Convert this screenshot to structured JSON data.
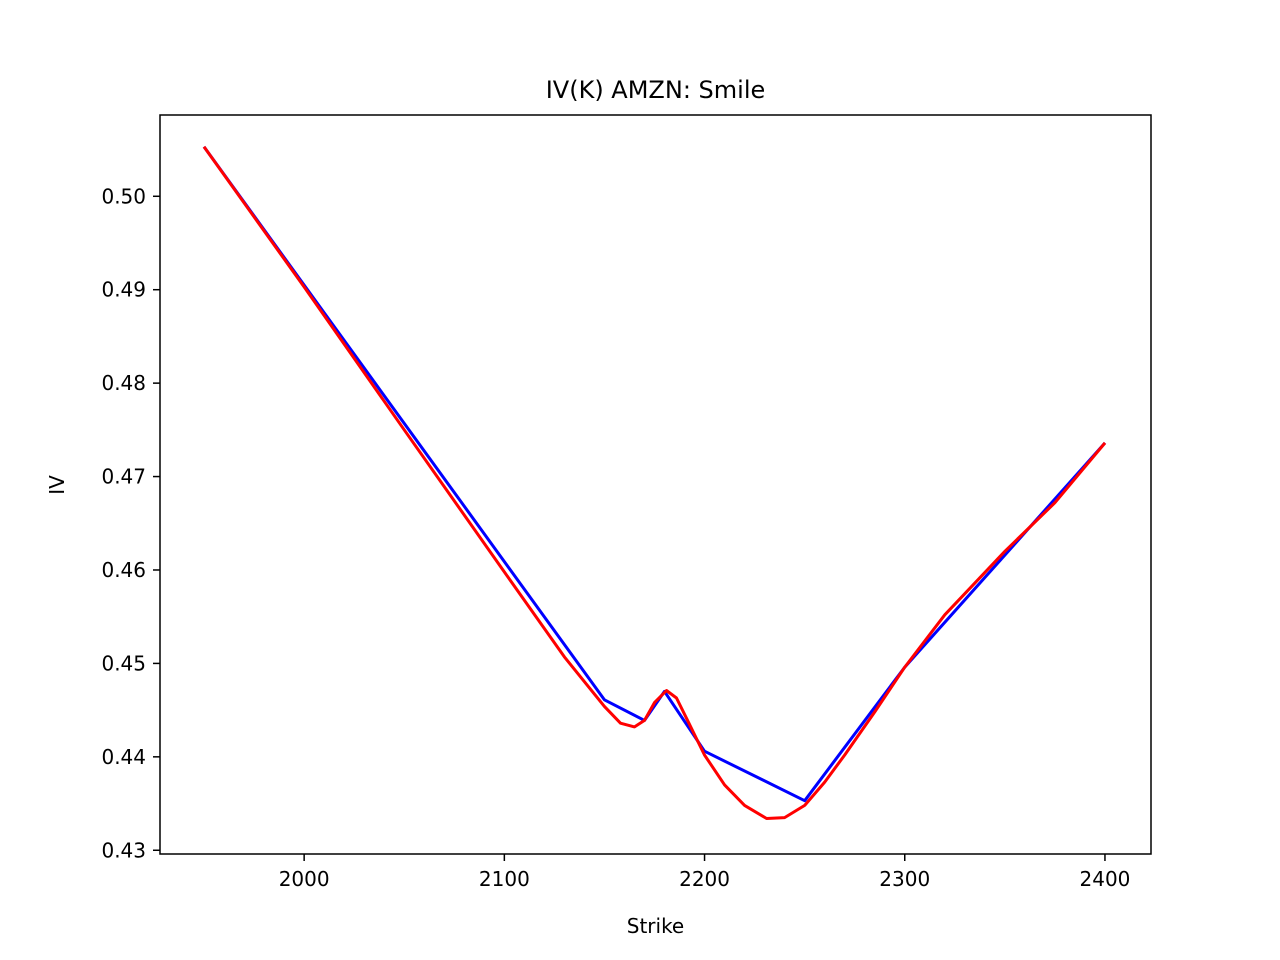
{
  "chart_data": {
    "type": "line",
    "title": "IV(K) AMZN: Smile",
    "xlabel": "Strike",
    "ylabel": "IV",
    "xlim": [
      1928,
      2423
    ],
    "ylim": [
      0.4296,
      0.5087
    ],
    "xticks": [
      2000,
      2100,
      2200,
      2300,
      2400
    ],
    "xtick_labels": [
      "2000",
      "2100",
      "2200",
      "2300",
      "2400"
    ],
    "yticks": [
      0.43,
      0.44,
      0.45,
      0.46,
      0.47,
      0.48,
      0.49,
      0.5
    ],
    "ytick_labels": [
      "0.43",
      "0.44",
      "0.45",
      "0.46",
      "0.47",
      "0.48",
      "0.49",
      "0.50"
    ],
    "grid": false,
    "series": [
      {
        "color": "#0000ff",
        "x": [
          1950,
          2150,
          2170,
          2180,
          2200,
          2250,
          2300,
          2400
        ],
        "y": [
          0.5053,
          0.4461,
          0.4439,
          0.447,
          0.4406,
          0.4353,
          0.4496,
          0.4736
        ]
      },
      {
        "color": "#ff0000",
        "x": [
          1950,
          2000,
          2050,
          2100,
          2130,
          2150,
          2158,
          2165,
          2170,
          2175,
          2181,
          2186,
          2192,
          2200,
          2210,
          2220,
          2231,
          2240,
          2250,
          2260,
          2270,
          2285,
          2300,
          2320,
          2350,
          2375,
          2400
        ],
        "y": [
          0.5053,
          0.4903,
          0.475,
          0.4598,
          0.4507,
          0.4454,
          0.4436,
          0.4432,
          0.4439,
          0.4458,
          0.4471,
          0.4463,
          0.4437,
          0.4402,
          0.437,
          0.4348,
          0.4334,
          0.4335,
          0.4348,
          0.4373,
          0.4402,
          0.4448,
          0.4496,
          0.4552,
          0.462,
          0.4672,
          0.4736
        ]
      }
    ]
  }
}
